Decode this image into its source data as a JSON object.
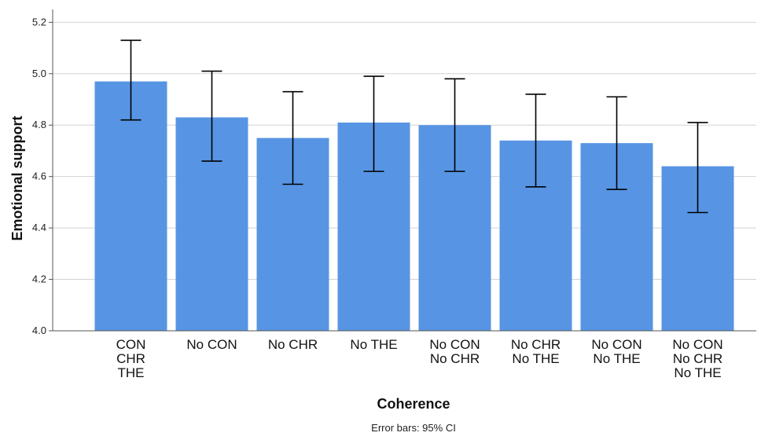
{
  "chart_data": {
    "type": "bar",
    "xlabel": "Coherence",
    "ylabel": "Emotional support",
    "ylim": [
      4.0,
      5.25
    ],
    "yticks": [
      "4.0",
      "4.2",
      "4.4",
      "4.6",
      "4.8",
      "5.0",
      "5.2"
    ],
    "grid": true,
    "categories": [
      [
        "CON",
        "CHR",
        "THE"
      ],
      [
        "No CON"
      ],
      [
        "No CHR"
      ],
      [
        "No THE"
      ],
      [
        "No CON",
        "No CHR"
      ],
      [
        "No CHR",
        "No THE"
      ],
      [
        "No CON",
        "No THE"
      ],
      [
        "No CON",
        "No CHR",
        "No THE"
      ]
    ],
    "values": [
      4.97,
      4.83,
      4.75,
      4.81,
      4.8,
      4.74,
      4.73,
      4.64
    ],
    "ci_lower": [
      4.82,
      4.66,
      4.57,
      4.62,
      4.62,
      4.56,
      4.55,
      4.46
    ],
    "ci_upper": [
      5.13,
      5.01,
      4.93,
      4.99,
      4.98,
      4.92,
      4.91,
      4.81
    ],
    "error_bar_note": "Error bars: 95% CI",
    "colors": {
      "bar": "#5795E4",
      "grid": "#d2d2d2",
      "axis": "#555555",
      "error_bar": "#000000"
    }
  }
}
